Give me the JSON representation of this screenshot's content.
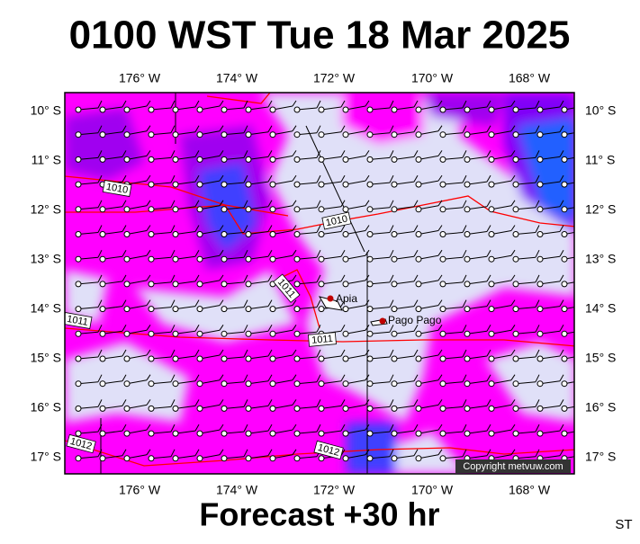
{
  "title": "0100 WST Tue 18 Mar 2025",
  "longitude_labels": [
    "176° W",
    "174° W",
    "172° W",
    "170° W",
    "168° W"
  ],
  "latitude_labels": [
    "10° S",
    "11° S",
    "12° S",
    "13° S",
    "14° S",
    "15° S",
    "16° S",
    "17° S"
  ],
  "isobar_labels": [
    "1010",
    "1010",
    "1011",
    "1011",
    "1011",
    "1012",
    "1012"
  ],
  "places": [
    "Apia",
    "Pago Pago"
  ],
  "copyright": "Copyright metvuw.com",
  "footer": "Forecast +30 hr",
  "corner": "ST"
}
